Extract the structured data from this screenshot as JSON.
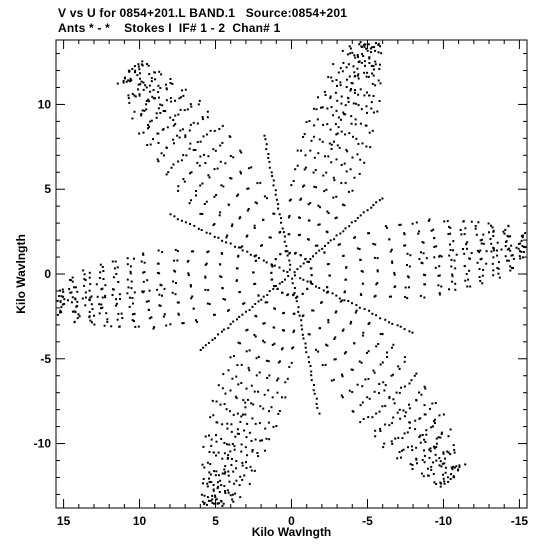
{
  "header": {
    "title_line1": "V vs U for 0854+201.L BAND.1   Source:0854+201",
    "title_line2": "Ants * - *    Stokes I  IF# 1 - 2  Chan# 1"
  },
  "chart_data": {
    "type": "scatter",
    "title": "V vs U for 0854+201.L BAND.1   Source:0854+201",
    "subtitle": "Ants * - *    Stokes I  IF# 1 - 2  Chan# 1",
    "xlabel": "Kilo Wavlngth",
    "ylabel": "Kilo Wavlngth",
    "xlim": [
      15.5,
      -15.5
    ],
    "ylim": [
      -13.8,
      13.8
    ],
    "x_ticks": [
      15,
      10,
      5,
      0,
      -5,
      -10,
      -15
    ],
    "x_tick_labels": [
      "15",
      "10",
      "5",
      "0",
      "-5",
      "-10",
      "-15"
    ],
    "y_ticks": [
      -10,
      -5,
      0,
      5,
      10
    ],
    "y_tick_labels": [
      "-10",
      "-5",
      "0",
      "5",
      "10"
    ],
    "grid": false,
    "marker_color": "#000000",
    "arm_tips_kilowavelength": [
      {
        "u": 10.3,
        "v": 11.9
      },
      {
        "u": -4.8,
        "v": 13.4
      },
      {
        "u": -15.3,
        "v": 1.6
      },
      {
        "u": -10.5,
        "v": -11.8
      },
      {
        "u": 5.2,
        "v": -13.5
      },
      {
        "u": 15.2,
        "v": -1.6
      }
    ],
    "arm_bases_kilowavelength": [
      {
        "u": 1.8,
        "v": 8.2
      },
      {
        "u": 8.0,
        "v": 3.5
      },
      {
        "u": 6.0,
        "v": -4.5
      },
      {
        "u": -1.8,
        "v": -8.2
      },
      {
        "u": -8.0,
        "v": -3.5
      },
      {
        "u": -6.0,
        "v": 4.5
      }
    ]
  }
}
